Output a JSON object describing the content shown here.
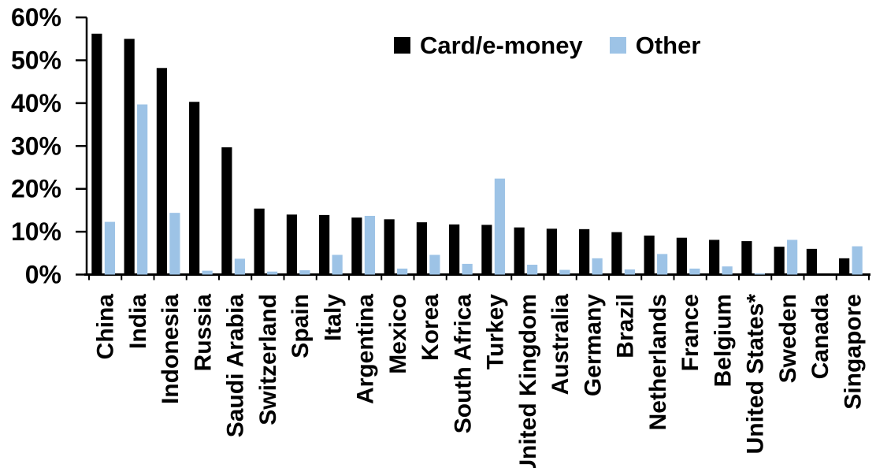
{
  "chart_data": {
    "type": "bar",
    "title": "",
    "xlabel": "",
    "ylabel": "",
    "ylim": [
      0,
      60
    ],
    "y_tick_step": 10,
    "y_ticks": [
      "0%",
      "10%",
      "20%",
      "30%",
      "40%",
      "50%",
      "60%"
    ],
    "grid": false,
    "legend_position": "top-center",
    "categories": [
      "China",
      "India",
      "Indonesia",
      "Russia",
      "Saudi Arabia",
      "Switzerland",
      "Spain",
      "Italy",
      "Argentina",
      "Mexico",
      "Korea",
      "South Africa",
      "Turkey",
      "United Kingdom",
      "Australia",
      "Germany",
      "Brazil",
      "Netherlands",
      "France",
      "Belgium",
      "United States*",
      "Sweden",
      "Canada",
      "Singapore"
    ],
    "series": [
      {
        "name": "Card/e-money",
        "color": "#000000",
        "values": [
          56.2,
          55.0,
          48.2,
          40.3,
          29.7,
          15.4,
          14.0,
          13.9,
          13.3,
          12.9,
          12.2,
          11.7,
          11.6,
          11.0,
          10.7,
          10.6,
          9.9,
          9.1,
          8.6,
          8.1,
          7.8,
          6.5,
          6.0,
          3.8
        ]
      },
      {
        "name": "Other",
        "color": "#9DC3E6",
        "values": [
          12.3,
          39.7,
          14.4,
          0.9,
          3.7,
          0.7,
          1.0,
          4.6,
          13.7,
          1.4,
          4.6,
          2.5,
          22.4,
          2.3,
          1.1,
          3.8,
          1.2,
          4.8,
          1.4,
          1.9,
          0.3,
          8.1,
          0.0,
          6.6
        ]
      }
    ],
    "axis_color": "#000000",
    "background_color": "#FFFFFF"
  }
}
